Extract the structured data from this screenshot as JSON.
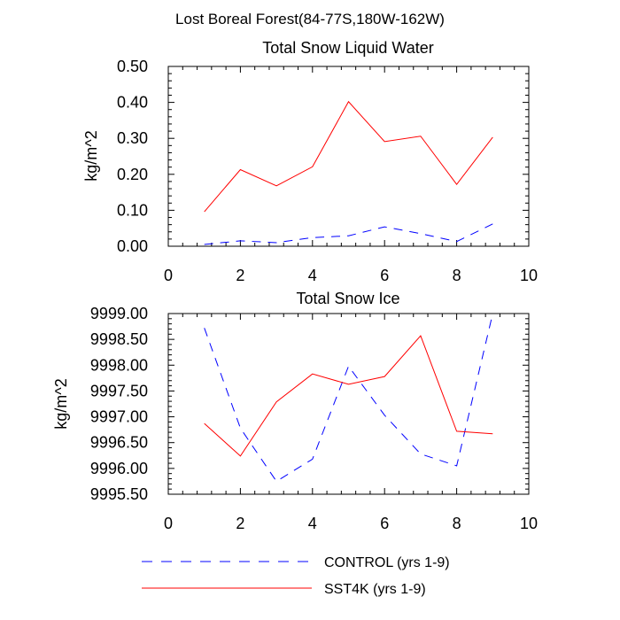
{
  "figure_title": "Lost Boreal Forest(84-77S,180W-162W)",
  "legend": {
    "control_label": "CONTROL (yrs 1-9)",
    "sst4k_label": "SST4K (yrs 1-9)"
  },
  "colors": {
    "control": "#0000ff",
    "sst4k": "#ff0000",
    "axis": "#000000"
  },
  "chart_data": [
    {
      "type": "line",
      "title": "Total Snow Liquid Water",
      "xlabel": "",
      "ylabel": "kg/m^2",
      "xlim": [
        0,
        10
      ],
      "ylim": [
        0.0,
        0.5
      ],
      "xticks": [
        "0",
        "2",
        "4",
        "6",
        "8",
        "10"
      ],
      "xtick_values": [
        0,
        2,
        4,
        6,
        8,
        10
      ],
      "yticks": [
        "0.00",
        "0.10",
        "0.20",
        "0.30",
        "0.40",
        "0.50"
      ],
      "ytick_values": [
        0.0,
        0.1,
        0.2,
        0.3,
        0.4,
        0.5
      ],
      "x": [
        1,
        2,
        3,
        4,
        5,
        6,
        7,
        8,
        9
      ],
      "series": [
        {
          "name": "CONTROL (yrs 1-9)",
          "style": "dashed",
          "values": [
            0.005,
            0.015,
            0.01,
            0.024,
            0.029,
            0.054,
            0.035,
            0.013,
            0.062
          ]
        },
        {
          "name": "SST4K (yrs 1-9)",
          "style": "solid",
          "values": [
            0.096,
            0.213,
            0.168,
            0.221,
            0.402,
            0.291,
            0.306,
            0.172,
            0.303
          ]
        }
      ]
    },
    {
      "type": "line",
      "title": "Total Snow Ice",
      "xlabel": "",
      "ylabel": "kg/m^2",
      "xlim": [
        0,
        10
      ],
      "ylim": [
        9995.5,
        9999.0
      ],
      "xticks": [
        "0",
        "2",
        "4",
        "6",
        "8",
        "10"
      ],
      "xtick_values": [
        0,
        2,
        4,
        6,
        8,
        10
      ],
      "yticks": [
        "9995.50",
        "9996.00",
        "9996.50",
        "9997.00",
        "9997.50",
        "9998.00",
        "9998.50",
        "9999.00"
      ],
      "ytick_values": [
        9995.5,
        9996.0,
        9996.5,
        9997.0,
        9997.5,
        9998.0,
        9998.5,
        9999.0
      ],
      "x": [
        1,
        2,
        3,
        4,
        5,
        6,
        7,
        8,
        9
      ],
      "series": [
        {
          "name": "CONTROL (yrs 1-9)",
          "style": "dashed",
          "values": [
            9998.72,
            9996.78,
            9995.75,
            9996.18,
            9997.98,
            9997.03,
            9996.28,
            9996.05,
            9999.0
          ]
        },
        {
          "name": "SST4K (yrs 1-9)",
          "style": "solid",
          "values": [
            9996.87,
            9996.24,
            9997.29,
            9997.83,
            9997.63,
            9997.78,
            9998.57,
            9996.72,
            9996.67
          ]
        }
      ]
    }
  ]
}
